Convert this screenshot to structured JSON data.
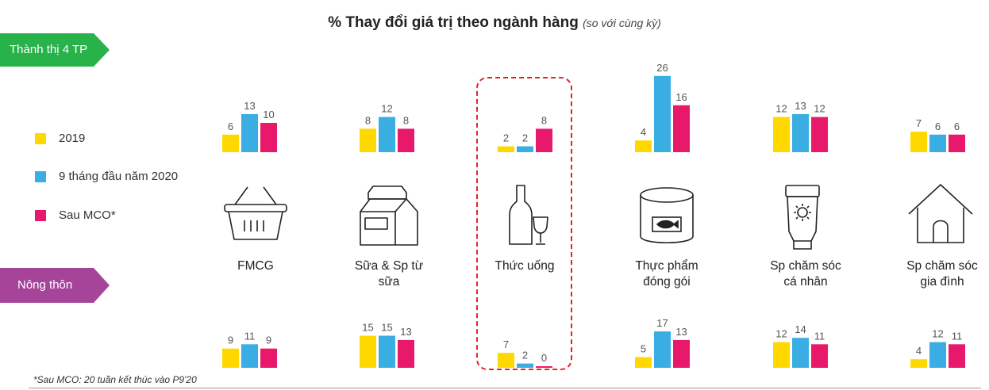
{
  "title": "% Thay đổi giá trị theo ngành hàng",
  "title_note": "(so với cùng kỳ)",
  "regions": {
    "urban": "Thành thị 4 TP",
    "rural": "Nông thôn"
  },
  "legend": [
    {
      "label": "2019",
      "color": "#ffd800"
    },
    {
      "label": "9 tháng đầu năm 2020",
      "color": "#3aaee3"
    },
    {
      "label": "Sau MCO*",
      "color": "#e8196a"
    }
  ],
  "categories": [
    {
      "line1": "FMCG",
      "line2": "",
      "icon": "basket-icon"
    },
    {
      "line1": "Sữa & Sp từ",
      "line2": "sữa",
      "icon": "milk-carton-icon"
    },
    {
      "line1": "Thức uống",
      "line2": "",
      "icon": "wine-bottle-glass-icon"
    },
    {
      "line1": "Thực phẩm",
      "line2": "đóng gói",
      "icon": "canned-fish-icon"
    },
    {
      "line1": "Sp chăm sóc",
      "line2": "cá nhân",
      "icon": "sunscreen-tube-icon"
    },
    {
      "line1": "Sp chăm sóc",
      "line2": "gia đình",
      "icon": "house-icon"
    }
  ],
  "highlighted_category": "Thức uống",
  "footnote": "*Sau MCO: 20 tuần kết thúc vào P9'20",
  "chart_data": [
    {
      "type": "bar",
      "title": "Thành thị 4 TP",
      "categories": [
        "FMCG",
        "Sữa & Sp từ sữa",
        "Thức uống",
        "Thực phẩm đóng gói",
        "Sp chăm sóc cá nhân",
        "Sp chăm sóc gia đình"
      ],
      "series": [
        {
          "name": "2019",
          "values": [
            6,
            8,
            2,
            4,
            12,
            7
          ]
        },
        {
          "name": "9 tháng đầu năm 2020",
          "values": [
            13,
            12,
            2,
            26,
            13,
            6
          ]
        },
        {
          "name": "Sau MCO*",
          "values": [
            10,
            8,
            8,
            16,
            12,
            6
          ]
        }
      ],
      "data_labels": true,
      "grid": false
    },
    {
      "type": "bar",
      "title": "Nông thôn",
      "categories": [
        "FMCG",
        "Sữa & Sp từ sữa",
        "Thức uống",
        "Thực phẩm đóng gói",
        "Sp chăm sóc cá nhân",
        "Sp chăm sóc gia đình"
      ],
      "series": [
        {
          "name": "2019",
          "values": [
            9,
            15,
            7,
            5,
            12,
            4
          ]
        },
        {
          "name": "9 tháng đầu năm 2020",
          "values": [
            11,
            15,
            2,
            17,
            14,
            12
          ]
        },
        {
          "name": "Sau MCO*",
          "values": [
            9,
            13,
            0,
            13,
            11,
            11
          ]
        }
      ],
      "data_labels": true,
      "grid": false
    }
  ]
}
